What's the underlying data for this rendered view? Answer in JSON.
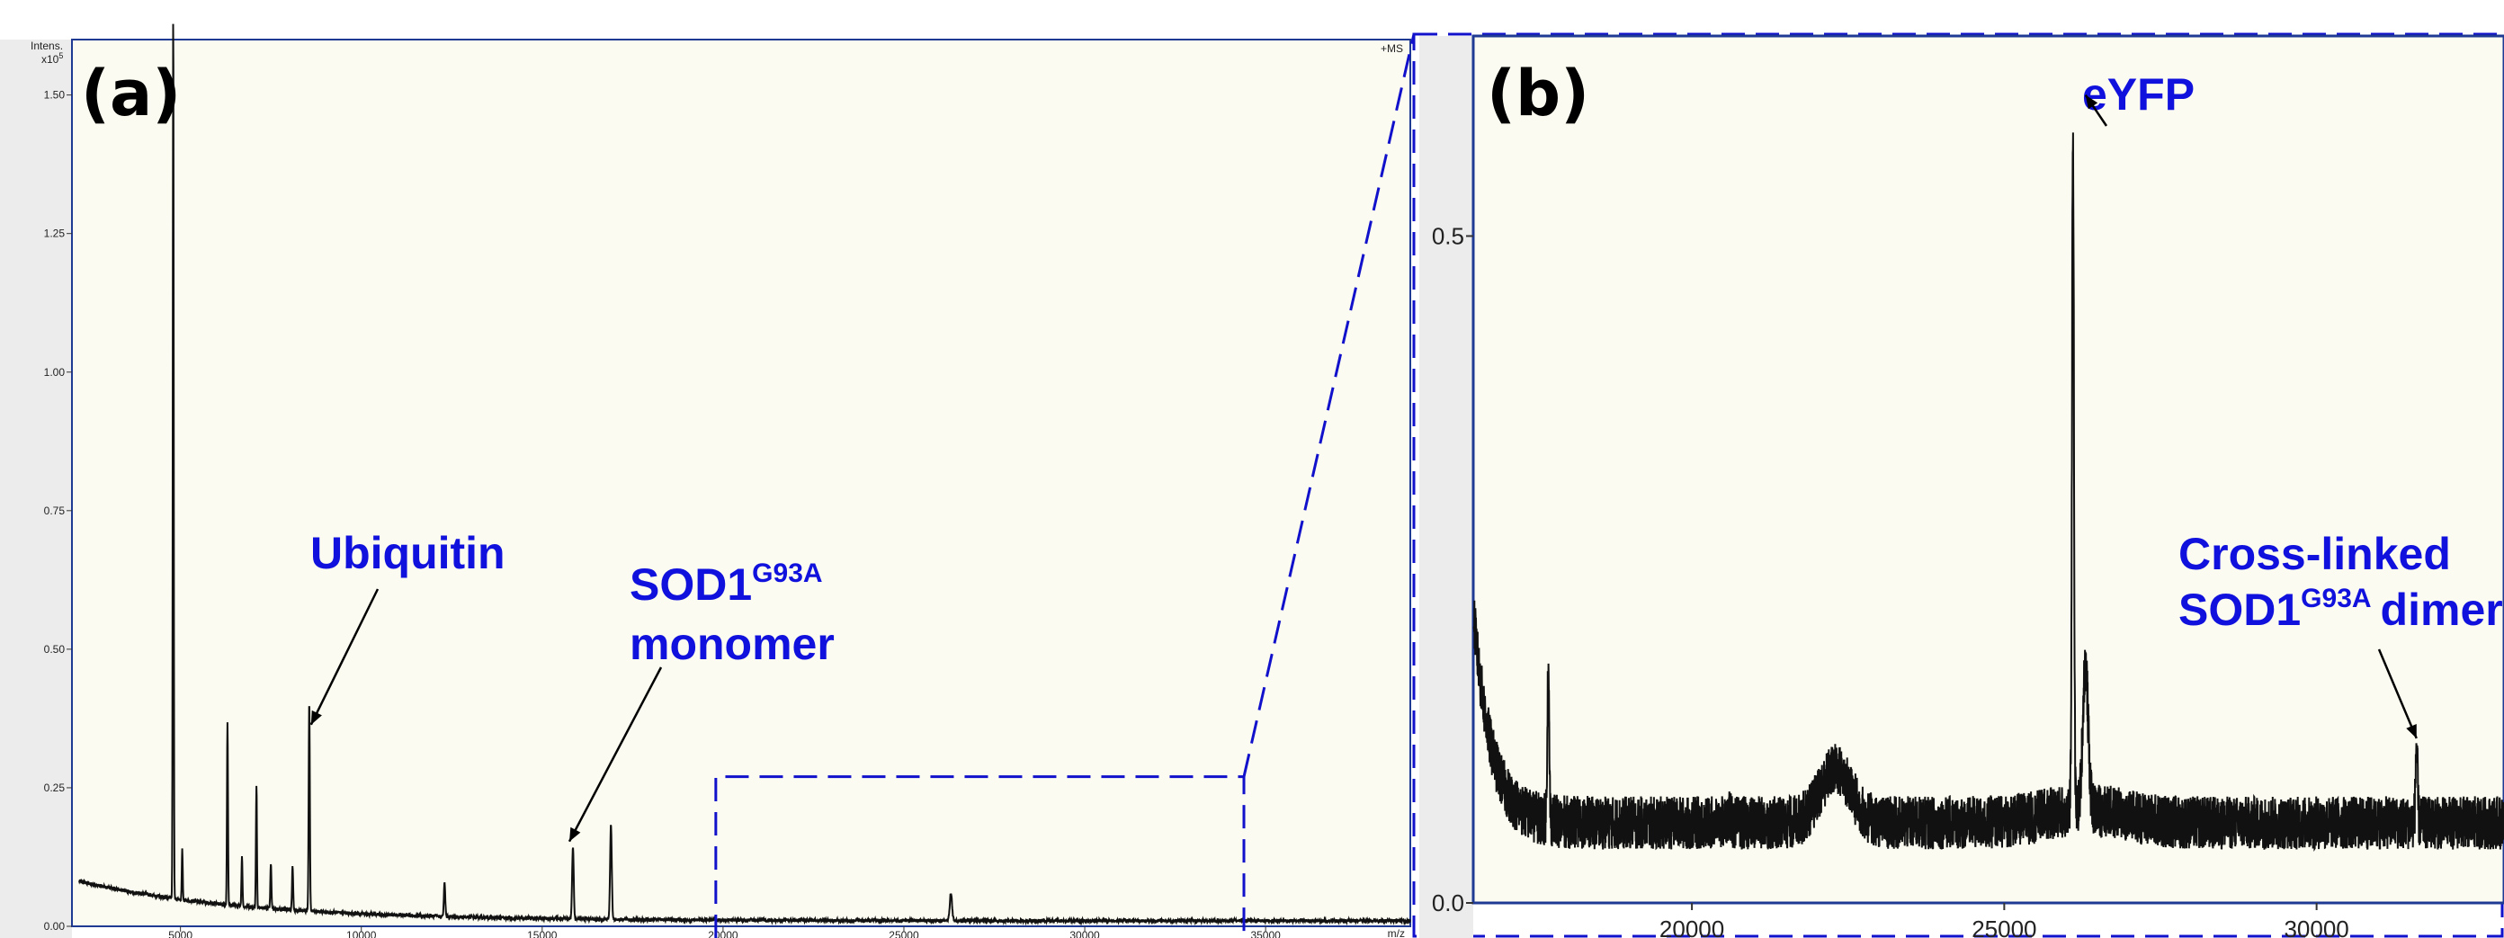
{
  "chart_data": [
    {
      "panel": "a",
      "type": "line",
      "panel_label": "(a)",
      "y_axis_header": "Intens.",
      "y_exponent": "x10",
      "y_exponent_power": "5",
      "mode_label": "+MS",
      "x_unit": "m/z",
      "xlim": [
        2000,
        39000
      ],
      "ylim": [
        0,
        1.6
      ],
      "x_ticks": [
        5000,
        10000,
        15000,
        20000,
        25000,
        30000,
        35000
      ],
      "x_tick_labels": [
        "5000",
        "10000",
        "15000",
        "20000",
        "25000",
        "30000",
        "35000"
      ],
      "y_ticks": [
        0.0,
        0.25,
        0.5,
        0.75,
        1.0,
        1.25,
        1.5
      ],
      "y_tick_labels": [
        "0.00",
        "0.25",
        "0.50",
        "0.75",
        "1.00",
        "1.25",
        "1.50"
      ],
      "peaks": [
        {
          "x": 4800,
          "y": 1.61
        },
        {
          "x": 5050,
          "y": 0.09
        },
        {
          "x": 6300,
          "y": 0.33
        },
        {
          "x": 6700,
          "y": 0.09
        },
        {
          "x": 7100,
          "y": 0.22
        },
        {
          "x": 7500,
          "y": 0.08
        },
        {
          "x": 8100,
          "y": 0.08
        },
        {
          "x": 8560,
          "y": 0.38
        },
        {
          "x": 12300,
          "y": 0.06
        },
        {
          "x": 15850,
          "y": 0.13
        },
        {
          "x": 16900,
          "y": 0.17
        },
        {
          "x": 26300,
          "y": 0.05
        }
      ],
      "zoom_region": {
        "x": [
          19800,
          34400
        ],
        "y": [
          0,
          0.27
        ]
      },
      "annotations": [
        {
          "lines": [
            "Ubiquitin"
          ],
          "x": 8560,
          "y": 0.38
        },
        {
          "lines": [
            "SOD1",
            "monomer"
          ],
          "superscript": "G93A",
          "x": 15850,
          "y": 0.14
        }
      ]
    },
    {
      "panel": "b",
      "type": "line",
      "panel_label": "(b)",
      "xlim": [
        16500,
        33000
      ],
      "ylim": [
        0,
        0.65
      ],
      "x_ticks": [
        20000,
        25000,
        30000
      ],
      "x_tick_labels": [
        "20000",
        "25000",
        "30000"
      ],
      "y_ticks": [
        0.0,
        0.5
      ],
      "y_tick_labels": [
        "0.0",
        "0.5"
      ],
      "peaks": [
        {
          "x": 17700,
          "y": 0.17
        },
        {
          "x": 20600,
          "y": 0.07
        },
        {
          "x": 22300,
          "y": 0.1
        },
        {
          "x": 26100,
          "y": 0.57
        },
        {
          "x": 26300,
          "y": 0.17
        },
        {
          "x": 31600,
          "y": 0.12
        }
      ],
      "annotations": [
        {
          "lines": [
            "eYFP"
          ],
          "x": 26100,
          "y": 0.57
        },
        {
          "lines": [
            "Cross-linked",
            "SOD1",
            "dimer"
          ],
          "superscript": "G93A",
          "x": 31600,
          "y": 0.12
        }
      ]
    }
  ],
  "colors": {
    "plot_background": "#fbfbf1",
    "outer_background": "#ececec",
    "trace": "#111111",
    "annotation": "#1111dd",
    "zoom_box": "#1111cc"
  }
}
